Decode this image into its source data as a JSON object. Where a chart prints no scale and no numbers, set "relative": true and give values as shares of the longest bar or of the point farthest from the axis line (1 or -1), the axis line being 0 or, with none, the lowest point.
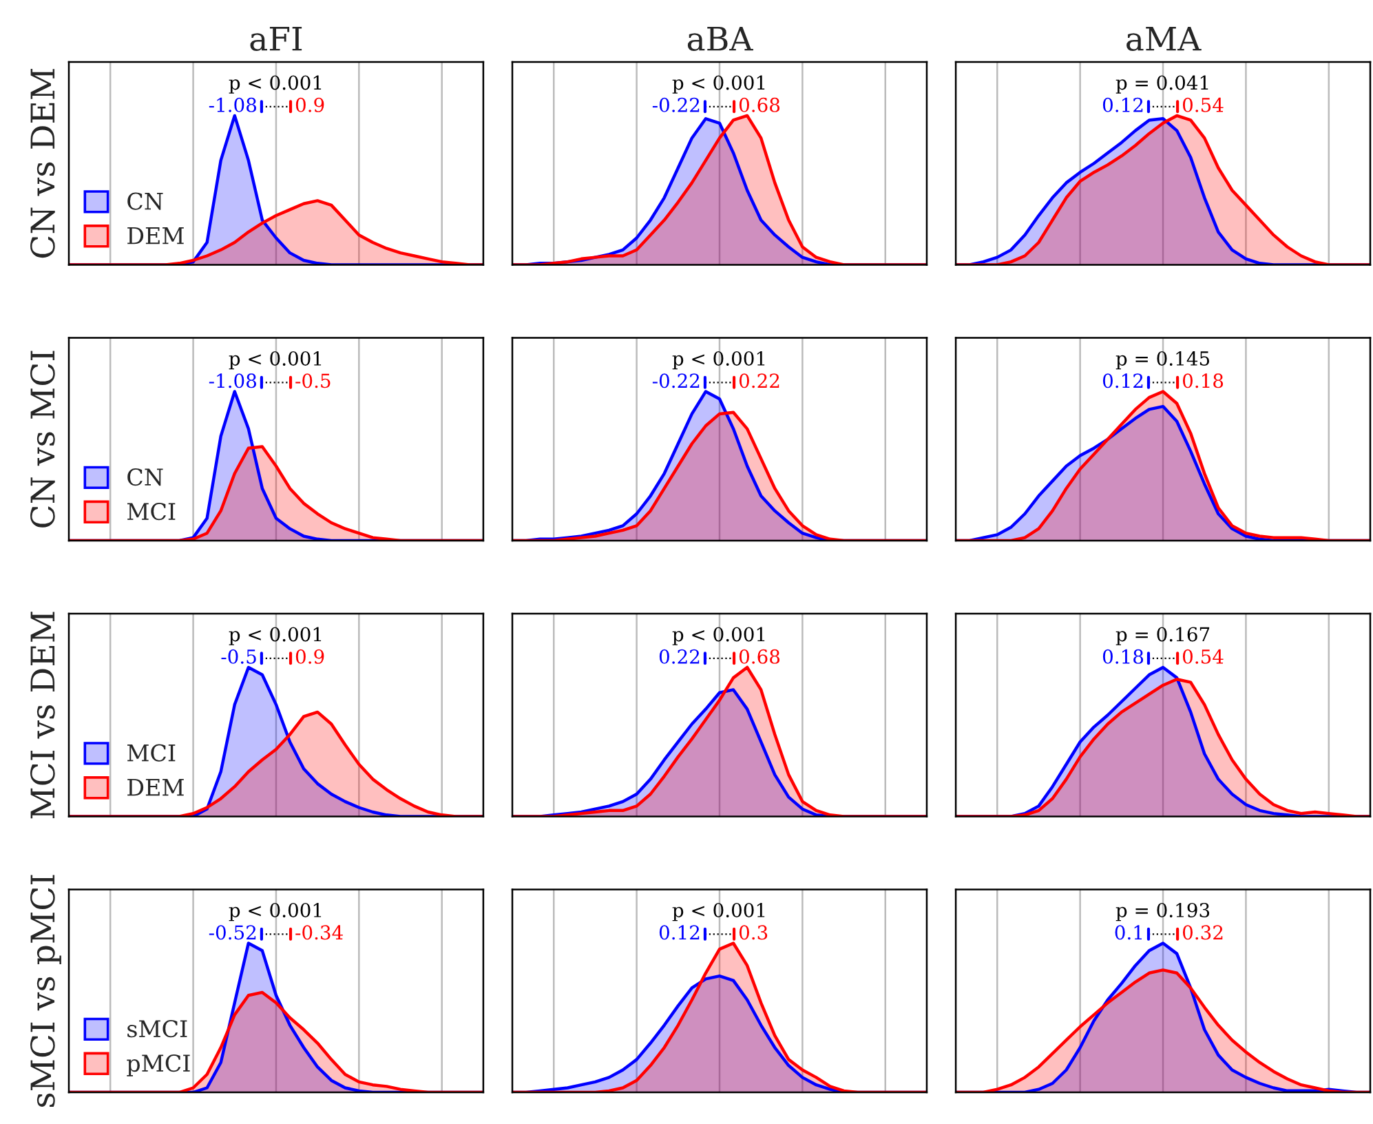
{
  "chart_data": [
    {
      "type": "area",
      "relative": true,
      "title": "aFI",
      "ylabel": "CN vs DEM",
      "grid": "x",
      "legend": "lower left",
      "categories": [
        null,
        null,
        null,
        null,
        null,
        null,
        null,
        null,
        null,
        null,
        null,
        null,
        null,
        null,
        null,
        null,
        null,
        null,
        null,
        null,
        null,
        null,
        null,
        null,
        null,
        null,
        null,
        null,
        null,
        null,
        null
      ],
      "annotations": [
        "p < 0.001",
        "-1.08",
        "0.9"
      ],
      "series": [
        {
          "name": "CN",
          "color": "#0000ff",
          "values": [
            0,
            0,
            0,
            0,
            0,
            0,
            0,
            0,
            0,
            0.02,
            0.15,
            0.7,
            1.0,
            0.7,
            0.3,
            0.18,
            0.08,
            0.03,
            0.01,
            0,
            0,
            0,
            0,
            0,
            0,
            0,
            0,
            0,
            0,
            0,
            0
          ]
        },
        {
          "name": "DEM",
          "color": "#ff0000",
          "values": [
            0,
            0,
            0,
            0,
            0,
            0,
            0,
            0,
            0.01,
            0.03,
            0.06,
            0.1,
            0.15,
            0.22,
            0.28,
            0.33,
            0.37,
            0.41,
            0.43,
            0.4,
            0.3,
            0.2,
            0.15,
            0.11,
            0.08,
            0.06,
            0.04,
            0.02,
            0.01,
            0,
            0
          ]
        }
      ]
    },
    {
      "type": "area",
      "relative": true,
      "title": "aBA",
      "grid": "x",
      "categories": [
        null,
        null,
        null,
        null,
        null,
        null,
        null,
        null,
        null,
        null,
        null,
        null,
        null,
        null,
        null,
        null,
        null,
        null,
        null,
        null,
        null,
        null,
        null,
        null,
        null,
        null,
        null,
        null,
        null,
        null,
        null
      ],
      "annotations": [
        "p < 0.001",
        "-0.22",
        "0.68"
      ],
      "series": [
        {
          "color": "#0000ff",
          "values": [
            0,
            0,
            0.01,
            0.01,
            0.02,
            0.03,
            0.05,
            0.07,
            0.1,
            0.18,
            0.3,
            0.45,
            0.65,
            0.85,
            0.98,
            0.95,
            0.75,
            0.5,
            0.3,
            0.2,
            0.12,
            0.05,
            0.02,
            0,
            0,
            0,
            0,
            0,
            0,
            0,
            0
          ]
        },
        {
          "color": "#ff0000",
          "values": [
            0,
            0,
            0,
            0.01,
            0.02,
            0.04,
            0.05,
            0.06,
            0.06,
            0.1,
            0.2,
            0.3,
            0.42,
            0.55,
            0.7,
            0.85,
            0.97,
            1.0,
            0.85,
            0.55,
            0.3,
            0.12,
            0.05,
            0.02,
            0,
            0,
            0,
            0,
            0,
            0,
            0
          ]
        }
      ]
    },
    {
      "type": "area",
      "relative": true,
      "title": "aMA",
      "grid": "x",
      "categories": [
        null,
        null,
        null,
        null,
        null,
        null,
        null,
        null,
        null,
        null,
        null,
        null,
        null,
        null,
        null,
        null,
        null,
        null,
        null,
        null,
        null,
        null,
        null,
        null,
        null,
        null,
        null,
        null,
        null,
        null,
        null
      ],
      "annotations": [
        "p = 0.041",
        "0.12",
        "0.54"
      ],
      "series": [
        {
          "color": "#0000ff",
          "values": [
            0,
            0,
            0.02,
            0.05,
            0.1,
            0.2,
            0.33,
            0.45,
            0.55,
            0.62,
            0.68,
            0.75,
            0.82,
            0.9,
            0.97,
            0.98,
            0.9,
            0.72,
            0.45,
            0.22,
            0.1,
            0.04,
            0.01,
            0,
            0,
            0,
            0,
            0,
            0,
            0,
            0
          ]
        },
        {
          "color": "#ff0000",
          "values": [
            0,
            0,
            0,
            0,
            0.02,
            0.06,
            0.15,
            0.3,
            0.45,
            0.56,
            0.62,
            0.67,
            0.73,
            0.8,
            0.88,
            0.95,
            1.0,
            0.97,
            0.85,
            0.65,
            0.5,
            0.4,
            0.3,
            0.2,
            0.12,
            0.06,
            0.02,
            0,
            0,
            0,
            0
          ]
        }
      ]
    },
    {
      "type": "area",
      "relative": true,
      "ylabel": "CN vs MCI",
      "grid": "x",
      "legend": "lower left",
      "categories": [
        null,
        null,
        null,
        null,
        null,
        null,
        null,
        null,
        null,
        null,
        null,
        null,
        null,
        null,
        null,
        null,
        null,
        null,
        null,
        null,
        null,
        null,
        null,
        null,
        null,
        null,
        null,
        null,
        null,
        null,
        null
      ],
      "annotations": [
        "p < 0.001",
        "-1.08",
        "-0.5"
      ],
      "series": [
        {
          "name": "CN",
          "color": "#0000ff",
          "values": [
            0,
            0,
            0,
            0,
            0,
            0,
            0,
            0,
            0,
            0.02,
            0.15,
            0.7,
            1.0,
            0.75,
            0.35,
            0.15,
            0.08,
            0.03,
            0.01,
            0,
            0,
            0,
            0,
            0,
            0,
            0,
            0,
            0,
            0,
            0,
            0
          ]
        },
        {
          "name": "MCI",
          "color": "#ff0000",
          "values": [
            0,
            0,
            0,
            0,
            0,
            0,
            0,
            0,
            0,
            0.01,
            0.05,
            0.2,
            0.45,
            0.62,
            0.63,
            0.5,
            0.35,
            0.25,
            0.18,
            0.12,
            0.08,
            0.05,
            0.02,
            0.01,
            0,
            0,
            0,
            0,
            0,
            0,
            0
          ]
        }
      ]
    },
    {
      "type": "area",
      "relative": true,
      "grid": "x",
      "categories": [
        null,
        null,
        null,
        null,
        null,
        null,
        null,
        null,
        null,
        null,
        null,
        null,
        null,
        null,
        null,
        null,
        null,
        null,
        null,
        null,
        null,
        null,
        null,
        null,
        null,
        null,
        null,
        null,
        null,
        null,
        null
      ],
      "annotations": [
        "p < 0.001",
        "-0.22",
        "0.22"
      ],
      "series": [
        {
          "color": "#0000ff",
          "values": [
            0,
            0,
            0.01,
            0.01,
            0.02,
            0.03,
            0.05,
            0.07,
            0.1,
            0.18,
            0.3,
            0.45,
            0.65,
            0.85,
            1.0,
            0.95,
            0.75,
            0.5,
            0.3,
            0.2,
            0.12,
            0.05,
            0.02,
            0,
            0,
            0,
            0,
            0,
            0,
            0,
            0
          ]
        },
        {
          "color": "#ff0000",
          "values": [
            0,
            0,
            0,
            0,
            0.01,
            0.02,
            0.03,
            0.05,
            0.07,
            0.1,
            0.2,
            0.35,
            0.5,
            0.65,
            0.77,
            0.85,
            0.86,
            0.75,
            0.55,
            0.35,
            0.2,
            0.1,
            0.04,
            0.01,
            0,
            0,
            0,
            0,
            0,
            0,
            0
          ]
        }
      ]
    },
    {
      "type": "area",
      "relative": true,
      "grid": "x",
      "categories": [
        null,
        null,
        null,
        null,
        null,
        null,
        null,
        null,
        null,
        null,
        null,
        null,
        null,
        null,
        null,
        null,
        null,
        null,
        null,
        null,
        null,
        null,
        null,
        null,
        null,
        null,
        null,
        null,
        null,
        null,
        null
      ],
      "annotations": [
        "p = 0.145",
        "0.12",
        "0.18"
      ],
      "series": [
        {
          "color": "#0000ff",
          "values": [
            0,
            0,
            0.02,
            0.04,
            0.09,
            0.18,
            0.3,
            0.4,
            0.5,
            0.57,
            0.62,
            0.68,
            0.75,
            0.82,
            0.88,
            0.9,
            0.8,
            0.6,
            0.38,
            0.18,
            0.08,
            0.03,
            0.01,
            0,
            0,
            0,
            0,
            0,
            0,
            0,
            0
          ]
        },
        {
          "color": "#ff0000",
          "values": [
            0,
            0,
            0,
            0,
            0,
            0.02,
            0.08,
            0.2,
            0.35,
            0.48,
            0.58,
            0.68,
            0.78,
            0.88,
            0.96,
            1.0,
            0.92,
            0.72,
            0.45,
            0.22,
            0.1,
            0.05,
            0.03,
            0.02,
            0.02,
            0.02,
            0.01,
            0,
            0,
            0,
            0
          ]
        }
      ]
    },
    {
      "type": "area",
      "relative": true,
      "ylabel": "MCI vs DEM",
      "grid": "x",
      "legend": "lower left",
      "categories": [
        null,
        null,
        null,
        null,
        null,
        null,
        null,
        null,
        null,
        null,
        null,
        null,
        null,
        null,
        null,
        null,
        null,
        null,
        null,
        null,
        null,
        null,
        null,
        null,
        null,
        null,
        null,
        null,
        null,
        null,
        null
      ],
      "annotations": [
        "p < 0.001",
        "-0.5",
        "0.9"
      ],
      "series": [
        {
          "name": "MCI",
          "color": "#0000ff",
          "values": [
            0,
            0,
            0,
            0,
            0,
            0,
            0,
            0,
            0,
            0,
            0.05,
            0.3,
            0.75,
            1.0,
            0.95,
            0.75,
            0.5,
            0.32,
            0.22,
            0.15,
            0.1,
            0.06,
            0.03,
            0.01,
            0,
            0,
            0,
            0,
            0,
            0,
            0
          ]
        },
        {
          "name": "DEM",
          "color": "#ff0000",
          "values": [
            0,
            0,
            0,
            0,
            0,
            0,
            0,
            0,
            0,
            0.02,
            0.06,
            0.12,
            0.2,
            0.3,
            0.38,
            0.45,
            0.55,
            0.67,
            0.7,
            0.62,
            0.48,
            0.35,
            0.25,
            0.18,
            0.12,
            0.07,
            0.03,
            0.01,
            0,
            0,
            0
          ]
        }
      ]
    },
    {
      "type": "area",
      "relative": true,
      "grid": "x",
      "categories": [
        null,
        null,
        null,
        null,
        null,
        null,
        null,
        null,
        null,
        null,
        null,
        null,
        null,
        null,
        null,
        null,
        null,
        null,
        null,
        null,
        null,
        null,
        null,
        null,
        null,
        null,
        null,
        null,
        null,
        null,
        null
      ],
      "annotations": [
        "p < 0.001",
        "0.22",
        "0.68"
      ],
      "series": [
        {
          "color": "#0000ff",
          "values": [
            0,
            0,
            0,
            0.01,
            0.02,
            0.03,
            0.05,
            0.07,
            0.1,
            0.15,
            0.25,
            0.38,
            0.5,
            0.62,
            0.72,
            0.83,
            0.85,
            0.72,
            0.5,
            0.28,
            0.13,
            0.05,
            0.01,
            0,
            0,
            0,
            0,
            0,
            0,
            0,
            0
          ]
        },
        {
          "color": "#ff0000",
          "values": [
            0,
            0,
            0,
            0,
            0.01,
            0.02,
            0.03,
            0.04,
            0.04,
            0.07,
            0.15,
            0.27,
            0.4,
            0.52,
            0.65,
            0.78,
            0.93,
            1.0,
            0.85,
            0.55,
            0.28,
            0.1,
            0.04,
            0.01,
            0,
            0,
            0,
            0,
            0,
            0,
            0
          ]
        }
      ]
    },
    {
      "type": "area",
      "relative": true,
      "grid": "x",
      "categories": [
        null,
        null,
        null,
        null,
        null,
        null,
        null,
        null,
        null,
        null,
        null,
        null,
        null,
        null,
        null,
        null,
        null,
        null,
        null,
        null,
        null,
        null,
        null,
        null,
        null,
        null,
        null,
        null,
        null,
        null,
        null
      ],
      "annotations": [
        "p = 0.167",
        "0.18",
        "0.54"
      ],
      "series": [
        {
          "color": "#0000ff",
          "values": [
            0,
            0,
            0,
            0,
            0,
            0.02,
            0.07,
            0.2,
            0.35,
            0.5,
            0.6,
            0.68,
            0.77,
            0.86,
            0.95,
            1.0,
            0.93,
            0.7,
            0.42,
            0.25,
            0.15,
            0.08,
            0.04,
            0.02,
            0.01,
            0,
            0,
            0,
            0,
            0,
            0
          ]
        },
        {
          "color": "#ff0000",
          "values": [
            0,
            0,
            0,
            0,
            0,
            0.01,
            0.04,
            0.12,
            0.25,
            0.4,
            0.52,
            0.62,
            0.7,
            0.76,
            0.82,
            0.88,
            0.92,
            0.9,
            0.75,
            0.55,
            0.38,
            0.25,
            0.15,
            0.08,
            0.04,
            0.02,
            0.03,
            0.02,
            0.01,
            0,
            0
          ]
        }
      ]
    },
    {
      "type": "area",
      "relative": true,
      "ylabel": "sMCI vs pMCI",
      "grid": "x",
      "legend": "lower left",
      "categories": [
        null,
        null,
        null,
        null,
        null,
        null,
        null,
        null,
        null,
        null,
        null,
        null,
        null,
        null,
        null,
        null,
        null,
        null,
        null,
        null,
        null,
        null,
        null,
        null,
        null,
        null,
        null,
        null,
        null,
        null,
        null
      ],
      "annotations": [
        "p < 0.001",
        "-0.52",
        "-0.34"
      ],
      "series": [
        {
          "name": "sMCI",
          "color": "#0000ff",
          "values": [
            0,
            0,
            0,
            0,
            0,
            0,
            0,
            0,
            0,
            0,
            0.03,
            0.2,
            0.6,
            1.0,
            0.95,
            0.65,
            0.45,
            0.3,
            0.17,
            0.08,
            0.03,
            0.01,
            0,
            0,
            0,
            0,
            0,
            0,
            0,
            0,
            0
          ]
        },
        {
          "name": "pMCI",
          "color": "#ff0000",
          "values": [
            0,
            0,
            0,
            0,
            0,
            0,
            0,
            0,
            0,
            0.03,
            0.12,
            0.3,
            0.52,
            0.65,
            0.67,
            0.6,
            0.5,
            0.42,
            0.33,
            0.22,
            0.12,
            0.07,
            0.05,
            0.04,
            0.02,
            0.01,
            0,
            0,
            0,
            0,
            0
          ]
        }
      ]
    },
    {
      "type": "area",
      "relative": true,
      "grid": "x",
      "categories": [
        null,
        null,
        null,
        null,
        null,
        null,
        null,
        null,
        null,
        null,
        null,
        null,
        null,
        null,
        null,
        null,
        null,
        null,
        null,
        null,
        null,
        null,
        null,
        null,
        null,
        null,
        null,
        null,
        null,
        null,
        null
      ],
      "annotations": [
        "p < 0.001",
        "0.12",
        "0.3"
      ],
      "series": [
        {
          "color": "#0000ff",
          "values": [
            0,
            0,
            0.01,
            0.02,
            0.03,
            0.05,
            0.07,
            0.1,
            0.15,
            0.22,
            0.33,
            0.45,
            0.58,
            0.7,
            0.76,
            0.78,
            0.75,
            0.62,
            0.45,
            0.3,
            0.18,
            0.1,
            0.05,
            0.02,
            0,
            0,
            0,
            0,
            0,
            0,
            0
          ]
        },
        {
          "color": "#ff0000",
          "values": [
            0,
            0,
            0,
            0,
            0,
            0,
            0,
            0.01,
            0.03,
            0.08,
            0.18,
            0.3,
            0.45,
            0.62,
            0.8,
            0.96,
            1.0,
            0.85,
            0.6,
            0.38,
            0.22,
            0.15,
            0.1,
            0.04,
            0.01,
            0,
            0,
            0,
            0,
            0,
            0
          ]
        }
      ]
    },
    {
      "type": "area",
      "relative": true,
      "grid": "x",
      "categories": [
        null,
        null,
        null,
        null,
        null,
        null,
        null,
        null,
        null,
        null,
        null,
        null,
        null,
        null,
        null,
        null,
        null,
        null,
        null,
        null,
        null,
        null,
        null,
        null,
        null,
        null,
        null,
        null,
        null,
        null,
        null
      ],
      "annotations": [
        "p = 0.193",
        "0.1",
        "0.32"
      ],
      "series": [
        {
          "color": "#0000ff",
          "values": [
            0,
            0,
            0,
            0,
            0,
            0,
            0.02,
            0.06,
            0.15,
            0.3,
            0.48,
            0.62,
            0.73,
            0.85,
            0.95,
            1.0,
            0.93,
            0.7,
            0.42,
            0.25,
            0.15,
            0.1,
            0.06,
            0.03,
            0.01,
            0.01,
            0.01,
            0.02,
            0.01,
            0,
            0
          ]
        },
        {
          "color": "#ff0000",
          "values": [
            0,
            0,
            0,
            0.02,
            0.05,
            0.1,
            0.17,
            0.26,
            0.35,
            0.44,
            0.52,
            0.6,
            0.67,
            0.74,
            0.8,
            0.82,
            0.8,
            0.7,
            0.57,
            0.45,
            0.35,
            0.27,
            0.2,
            0.14,
            0.09,
            0.05,
            0.03,
            0.01,
            0,
            0,
            0
          ]
        }
      ]
    }
  ]
}
